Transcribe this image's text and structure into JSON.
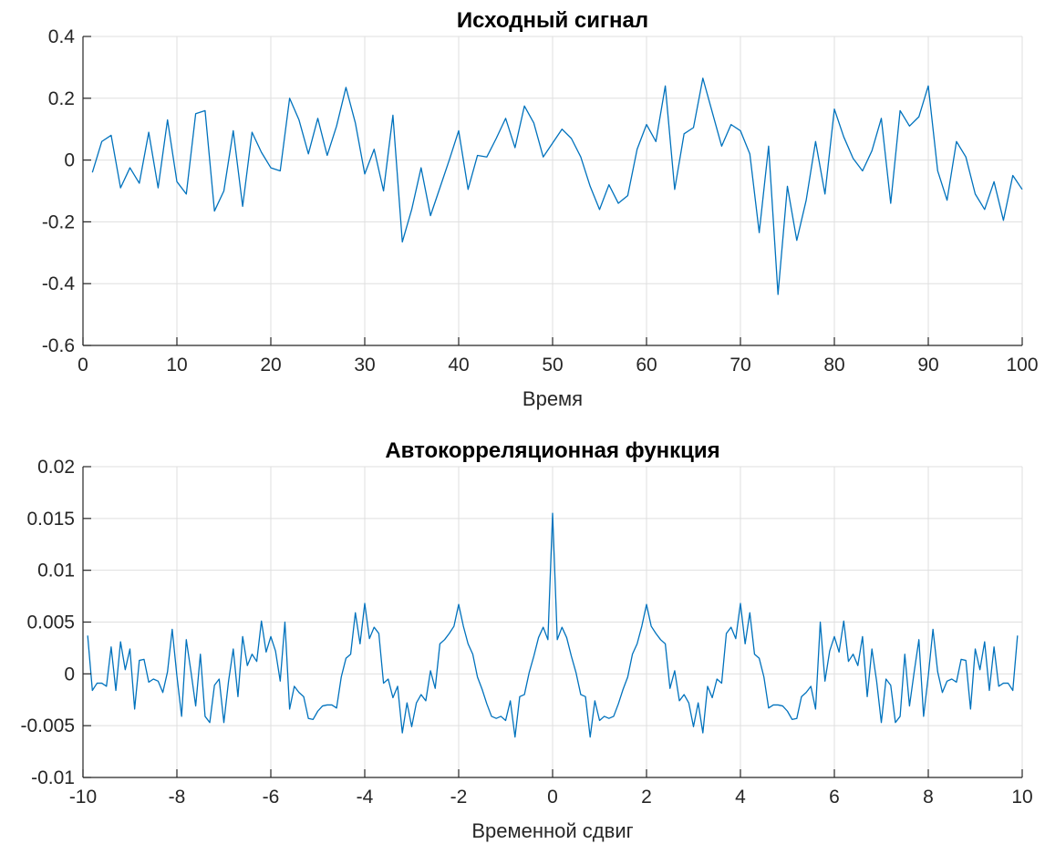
{
  "chart_data": [
    {
      "type": "line",
      "title": "Исходный сигнал",
      "xlabel": "Время",
      "ylabel": "",
      "xlim": [
        0,
        100
      ],
      "ylim": [
        -0.6,
        0.4
      ],
      "xticks": [
        0,
        10,
        20,
        30,
        40,
        50,
        60,
        70,
        80,
        90,
        100
      ],
      "yticks": [
        -0.6,
        -0.4,
        -0.2,
        0,
        0.2,
        0.4
      ],
      "xtick_labels": [
        "0",
        "10",
        "20",
        "30",
        "40",
        "50",
        "60",
        "70",
        "80",
        "90",
        "100"
      ],
      "ytick_labels": [
        "-0.6",
        "-0.4",
        "-0.2",
        "0",
        "0.2",
        "0.4"
      ],
      "grid": true,
      "color": "#0072BD",
      "series": [
        {
          "x": [
            1,
            2,
            3,
            4,
            5,
            6,
            7,
            8,
            9,
            10,
            11,
            12,
            13,
            14,
            15,
            16,
            17,
            18,
            19,
            20,
            21,
            22,
            23,
            24,
            25,
            26,
            27,
            28,
            29,
            30,
            31,
            32,
            33,
            34,
            35,
            36,
            37,
            38,
            39,
            40,
            41,
            42,
            43,
            44,
            45,
            46,
            47,
            48,
            49,
            50,
            51,
            52,
            53,
            54,
            55,
            56,
            57,
            58,
            59,
            60,
            61,
            62,
            63,
            64,
            65,
            66,
            67,
            68,
            69,
            70,
            71,
            72,
            73,
            74,
            75,
            76,
            77,
            78,
            79,
            80,
            81,
            82,
            83,
            84,
            85,
            86,
            87,
            88,
            89,
            90,
            91,
            92,
            93,
            94,
            95,
            96,
            97,
            98,
            99,
            100
          ],
          "y": [
            -0.04,
            0.06,
            0.08,
            -0.09,
            -0.025,
            -0.075,
            0.09,
            -0.09,
            0.13,
            -0.07,
            -0.11,
            0.15,
            0.16,
            -0.165,
            -0.1,
            0.095,
            -0.15,
            0.09,
            0.025,
            -0.025,
            -0.035,
            0.2,
            0.13,
            0.02,
            0.135,
            0.015,
            0.11,
            0.235,
            0.12,
            -0.045,
            0.035,
            -0.1,
            0.145,
            -0.265,
            -0.16,
            -0.025,
            -0.18,
            -0.09,
            0.0,
            0.095,
            -0.095,
            0.015,
            0.01,
            0.07,
            0.135,
            0.04,
            0.175,
            0.12,
            0.01,
            0.055,
            0.1,
            0.07,
            0.01,
            -0.085,
            -0.16,
            -0.08,
            -0.14,
            -0.115,
            0.035,
            0.115,
            0.06,
            0.24,
            -0.095,
            0.085,
            0.105,
            0.265,
            0.155,
            0.045,
            0.115,
            0.095,
            0.02,
            -0.235,
            0.045,
            -0.435,
            -0.085,
            -0.26,
            -0.13,
            0.06,
            -0.11,
            0.165,
            0.075,
            0.005,
            -0.035,
            0.03,
            0.135,
            -0.14,
            0.16,
            0.11,
            0.14,
            0.24,
            -0.035,
            -0.13,
            0.06,
            0.01,
            -0.11,
            -0.16,
            -0.07,
            -0.195,
            -0.05,
            -0.095
          ]
        }
      ]
    },
    {
      "type": "line",
      "title": "Автокорреляционная функция",
      "xlabel": "Временной сдвиг",
      "ylabel": "",
      "xlim": [
        -10,
        10
      ],
      "ylim": [
        -0.01,
        0.02
      ],
      "xticks": [
        -10,
        -8,
        -6,
        -4,
        -2,
        0,
        2,
        4,
        6,
        8,
        10
      ],
      "yticks": [
        -0.01,
        -0.005,
        0,
        0.005,
        0.01,
        0.015,
        0.02
      ],
      "xtick_labels": [
        "-10",
        "-8",
        "-6",
        "-4",
        "-2",
        "0",
        "2",
        "4",
        "6",
        "8",
        "10"
      ],
      "ytick_labels": [
        "-0.01",
        "-0.005",
        "0",
        "0.005",
        "0.01",
        "0.015",
        "0.02"
      ],
      "grid": true,
      "color": "#0072BD",
      "series": [
        {
          "x": [
            -9.9,
            -9.8,
            -9.7,
            -9.6,
            -9.5,
            -9.4,
            -9.3,
            -9.2,
            -9.1,
            -9.0,
            -8.9,
            -8.8,
            -8.7,
            -8.6,
            -8.5,
            -8.4,
            -8.3,
            -8.2,
            -8.1,
            -8.0,
            -7.9,
            -7.8,
            -7.7,
            -7.6,
            -7.5,
            -7.4,
            -7.3,
            -7.2,
            -7.1,
            -7.0,
            -6.9,
            -6.8,
            -6.7,
            -6.6,
            -6.5,
            -6.4,
            -6.3,
            -6.2,
            -6.1,
            -6.0,
            -5.9,
            -5.8,
            -5.7,
            -5.6,
            -5.5,
            -5.4,
            -5.3,
            -5.2,
            -5.1,
            -5.0,
            -4.9,
            -4.8,
            -4.7,
            -4.6,
            -4.5,
            -4.4,
            -4.3,
            -4.2,
            -4.1,
            -4.0,
            -3.9,
            -3.8,
            -3.7,
            -3.6,
            -3.5,
            -3.4,
            -3.3,
            -3.2,
            -3.1,
            -3.0,
            -2.9,
            -2.8,
            -2.7,
            -2.6,
            -2.5,
            -2.4,
            -2.3,
            -2.2,
            -2.1,
            -2.0,
            -1.9,
            -1.8,
            -1.7,
            -1.6,
            -1.5,
            -1.4,
            -1.3,
            -1.2,
            -1.1,
            -1.0,
            -0.9,
            -0.8,
            -0.7,
            -0.6,
            -0.5,
            -0.4,
            -0.3,
            -0.2,
            -0.1,
            0.0,
            0.1,
            0.2,
            0.3,
            0.4,
            0.5,
            0.6,
            0.7,
            0.8,
            0.9,
            1.0,
            1.1,
            1.2,
            1.3,
            1.4,
            1.5,
            1.6,
            1.7,
            1.8,
            1.9,
            2.0,
            2.1,
            2.2,
            2.3,
            2.4,
            2.5,
            2.6,
            2.7,
            2.8,
            2.9,
            3.0,
            3.1,
            3.2,
            3.3,
            3.4,
            3.5,
            3.6,
            3.7,
            3.8,
            3.9,
            4.0,
            4.1,
            4.2,
            4.3,
            4.4,
            4.5,
            4.6,
            4.7,
            4.8,
            4.9,
            5.0,
            5.1,
            5.2,
            5.3,
            5.4,
            5.5,
            5.6,
            5.7,
            5.8,
            5.9,
            6.0,
            6.1,
            6.2,
            6.3,
            6.4,
            6.5,
            6.6,
            6.7,
            6.8,
            6.9,
            7.0,
            7.1,
            7.2,
            7.3,
            7.4,
            7.5,
            7.6,
            7.7,
            7.8,
            7.9,
            8.0,
            8.1,
            8.2,
            8.3,
            8.4,
            8.5,
            8.6,
            8.7,
            8.8,
            8.9,
            9.0,
            9.1,
            9.2,
            9.3,
            9.4,
            9.5,
            9.6,
            9.7,
            9.8,
            9.9
          ],
          "y": [
            0.0037,
            -0.0016,
            -0.0009,
            -0.0009,
            -0.0012,
            0.0026,
            -0.0016,
            0.0031,
            0.0004,
            0.0024,
            -0.0034,
            0.0013,
            0.0014,
            -0.0008,
            -0.0005,
            -0.0007,
            -0.0018,
            0.0002,
            0.0043,
            -0.0002,
            -0.0041,
            0.0033,
            0.0002,
            -0.0031,
            0.0019,
            -0.0041,
            -0.0047,
            -0.0011,
            -0.0005,
            -0.0047,
            -0.0007,
            0.0024,
            -0.0022,
            0.0036,
            0.0008,
            0.0019,
            0.0012,
            0.0051,
            0.0021,
            0.0036,
            0.0022,
            -0.0007,
            0.005,
            -0.0034,
            -0.0012,
            -0.0018,
            -0.0022,
            -0.0043,
            -0.0044,
            -0.0036,
            -0.0031,
            -0.003,
            -0.003,
            -0.0033,
            -0.0003,
            0.0015,
            0.0019,
            0.0059,
            0.0029,
            0.0068,
            0.0034,
            0.0045,
            0.0039,
            -0.0009,
            -0.0005,
            -0.0023,
            -0.0012,
            -0.0057,
            -0.0028,
            -0.0051,
            -0.0028,
            -0.002,
            -0.0026,
            0.0003,
            -0.0014,
            0.0029,
            0.0033,
            0.0039,
            0.0046,
            0.0067,
            0.0046,
            0.0029,
            0.0019,
            -0.0003,
            -0.0015,
            -0.0029,
            -0.0041,
            -0.0043,
            -0.0041,
            -0.0045,
            -0.0026,
            -0.0061,
            -0.0022,
            -0.002,
            0.0001,
            0.0017,
            0.0035,
            0.0045,
            0.0033,
            0.0155,
            0.0033,
            0.0045,
            0.0035,
            0.0017,
            0.0001,
            -0.002,
            -0.0022,
            -0.0061,
            -0.0026,
            -0.0045,
            -0.0041,
            -0.0043,
            -0.0041,
            -0.0029,
            -0.0015,
            -0.0003,
            0.0019,
            0.0029,
            0.0046,
            0.0067,
            0.0046,
            0.0039,
            0.0033,
            0.0029,
            -0.0014,
            0.0003,
            -0.0026,
            -0.002,
            -0.0028,
            -0.0051,
            -0.0028,
            -0.0057,
            -0.0012,
            -0.0023,
            -0.0005,
            -0.0009,
            0.0039,
            0.0045,
            0.0034,
            0.0068,
            0.0029,
            0.0059,
            0.0019,
            0.0015,
            -0.0003,
            -0.0033,
            -0.003,
            -0.003,
            -0.0031,
            -0.0036,
            -0.0044,
            -0.0043,
            -0.0022,
            -0.0018,
            -0.0012,
            -0.0034,
            0.005,
            -0.0007,
            0.0022,
            0.0036,
            0.0021,
            0.0051,
            0.0012,
            0.0019,
            0.0008,
            0.0036,
            -0.0022,
            0.0024,
            -0.0007,
            -0.0047,
            -0.0005,
            -0.0011,
            -0.0047,
            -0.0041,
            0.0019,
            -0.0031,
            0.0002,
            0.0033,
            -0.0041,
            -0.0002,
            0.0043,
            0.0002,
            -0.0018,
            -0.0007,
            -0.0005,
            -0.0008,
            0.0014,
            0.0013,
            -0.0034,
            0.0024,
            0.0004,
            0.0031,
            -0.0016,
            0.0026,
            -0.0012,
            -0.0009,
            -0.0009,
            -0.0016,
            0.0037
          ]
        }
      ]
    }
  ]
}
